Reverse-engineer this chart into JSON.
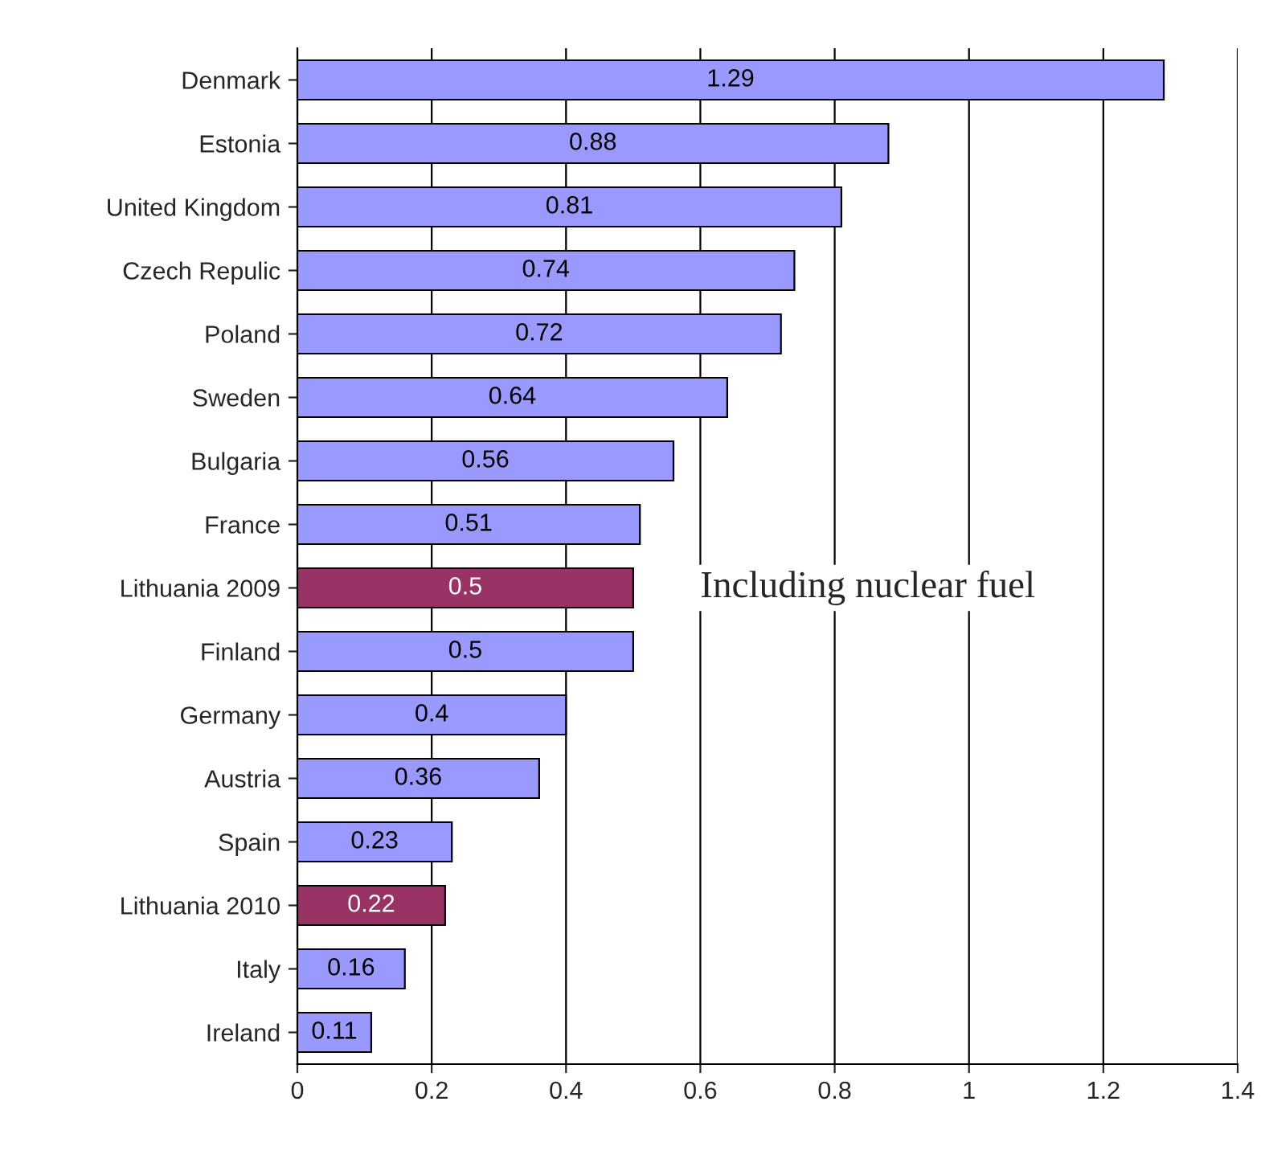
{
  "chart_data": {
    "type": "bar",
    "orientation": "horizontal",
    "categories": [
      "Denmark",
      "Estonia",
      "United Kingdom",
      "Czech Repulic",
      "Poland",
      "Sweden",
      "Bulgaria",
      "France",
      "Lithuania 2009",
      "Finland",
      "Germany",
      "Austria",
      "Spain",
      "Lithuania 2010",
      "Italy",
      "Ireland"
    ],
    "values": [
      1.29,
      0.88,
      0.81,
      0.74,
      0.72,
      0.64,
      0.56,
      0.51,
      0.5,
      0.5,
      0.4,
      0.36,
      0.23,
      0.22,
      0.16,
      0.11
    ],
    "colors": [
      "#9999ff",
      "#9999ff",
      "#9999ff",
      "#9999ff",
      "#9999ff",
      "#9999ff",
      "#9999ff",
      "#9999ff",
      "#993366",
      "#9999ff",
      "#9999ff",
      "#9999ff",
      "#9999ff",
      "#993366",
      "#9999ff",
      "#9999ff"
    ],
    "xlim": [
      0,
      1.4
    ],
    "xticks": [
      0,
      0.2,
      0.4,
      0.6,
      0.8,
      1,
      1.2,
      1.4
    ],
    "grid": "x",
    "data_labels": true,
    "annotations": [
      {
        "text": "Including nuclear fuel",
        "x": 0.5,
        "y": "Lithuania 2009"
      }
    ]
  }
}
